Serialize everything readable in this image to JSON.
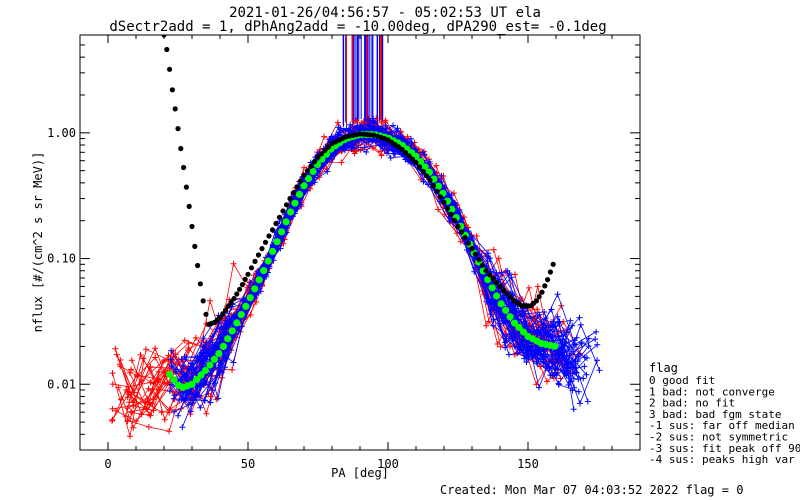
{
  "chart_data": {
    "type": "scatter",
    "title": "2021-01-26/04:56:57 - 05:02:53 UT ela",
    "subtitle": "dSectr2add = 1, dPhAng2add = -10.00deg, dPA290_est=  -0.1deg",
    "xlabel": "PA [deg]",
    "ylabel": "nflux [#/(cm^2 s sr MeV)]",
    "xlim": [
      -10,
      190
    ],
    "ylim": [
      0.003,
      6
    ],
    "yscale": "log",
    "xticks": [
      0,
      50,
      100,
      150
    ],
    "yticks": [
      {
        "value": 0.01,
        "label": "0.01"
      },
      {
        "value": 0.1,
        "label": "0.10"
      },
      {
        "value": 1.0,
        "label": "1.00"
      }
    ],
    "grid": false,
    "legend_position": "right",
    "colors": {
      "data_a": "#ff0000",
      "data_b": "#0000ff",
      "fit": "#00ff00",
      "model": "#000000"
    },
    "series": [
      {
        "color": "#00ff00",
        "x": [
          22,
          26,
          30,
          35,
          40,
          45,
          50,
          55,
          60,
          65,
          70,
          75,
          80,
          85,
          90,
          95,
          100,
          105,
          110,
          115,
          120,
          125,
          130,
          135,
          140,
          145,
          150,
          155,
          160
        ],
        "y": [
          0.012,
          0.0093,
          0.01,
          0.013,
          0.018,
          0.028,
          0.045,
          0.075,
          0.13,
          0.23,
          0.38,
          0.57,
          0.76,
          0.9,
          0.97,
          0.97,
          0.91,
          0.8,
          0.65,
          0.48,
          0.32,
          0.2,
          0.12,
          0.072,
          0.045,
          0.031,
          0.024,
          0.021,
          0.02
        ]
      },
      {
        "color": "#000000",
        "x": [
          20,
          21,
          22,
          23,
          24,
          25,
          26,
          27,
          28,
          29,
          30,
          31,
          32,
          33,
          34,
          35,
          36,
          38,
          40,
          42,
          45,
          48,
          50,
          55,
          60,
          65,
          70,
          75,
          80,
          85,
          90,
          95,
          100,
          105,
          110,
          115,
          120,
          125,
          130,
          135,
          140,
          145,
          148,
          151,
          153,
          155,
          157,
          159,
          160
        ],
        "y": [
          6.0,
          4.6,
          3.2,
          2.2,
          1.55,
          1.08,
          0.75,
          0.53,
          0.37,
          0.26,
          0.18,
          0.125,
          0.088,
          0.063,
          0.046,
          0.036,
          0.03,
          0.031,
          0.034,
          0.039,
          0.048,
          0.062,
          0.075,
          0.12,
          0.19,
          0.3,
          0.46,
          0.64,
          0.82,
          0.93,
          0.98,
          0.96,
          0.88,
          0.74,
          0.58,
          0.42,
          0.28,
          0.18,
          0.12,
          0.08,
          0.06,
          0.046,
          0.042,
          0.042,
          0.046,
          0.054,
          0.068,
          0.09,
          0.11
        ]
      }
    ],
    "legend": {
      "title": "flag",
      "entries": [
        " 0 good fit",
        " 1 bad: not converge",
        " 2 bad: no fit",
        " 3 bad: bad fgm state",
        "-1 sus: far off median",
        "-2 sus: not symmetric",
        "-3 sus: fit peak off 90",
        "-4 sus: peaks high var"
      ]
    },
    "footer": "Created: Mon Mar 07 04:03:52 2022   flag = 0"
  }
}
